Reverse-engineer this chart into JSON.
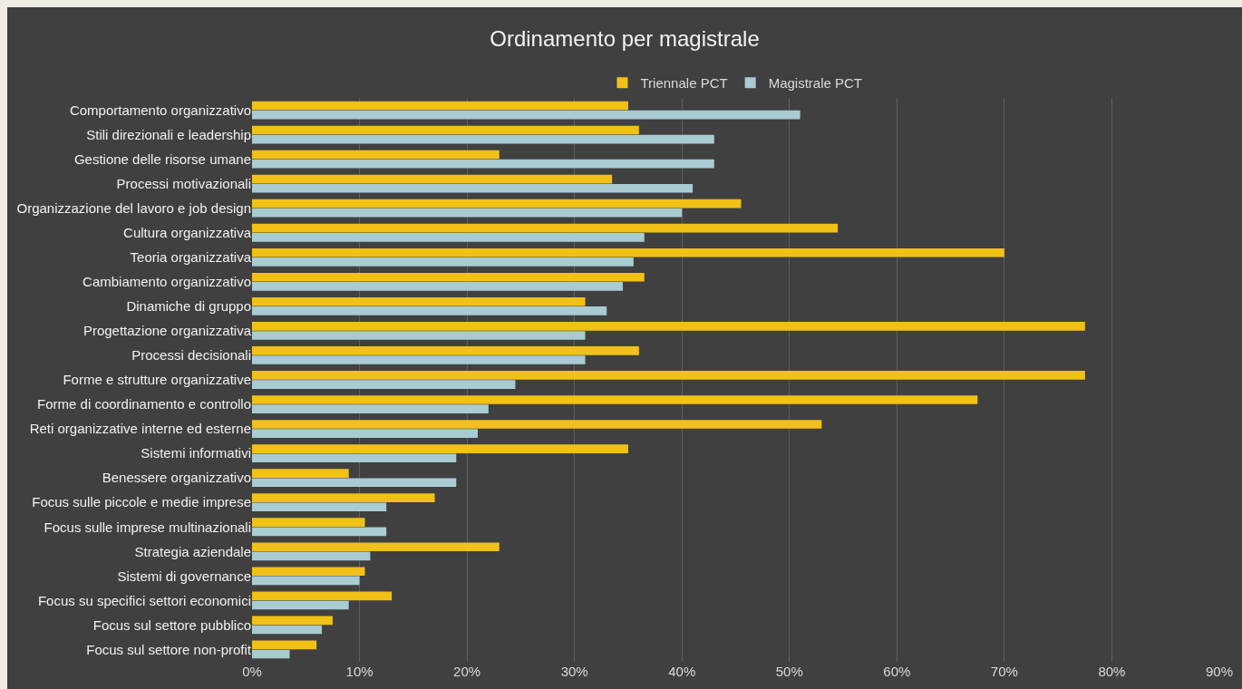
{
  "chart_data": {
    "type": "bar",
    "orientation": "horizontal",
    "title": "Ordinamento per magistrale",
    "categories": [
      "Comportamento organizzativo",
      "Stili direzionali e leadership",
      "Gestione delle risorse umane",
      "Processi motivazionali",
      "Organizzazione del lavoro e job design",
      "Cultura organizzativa",
      "Teoria organizzativa",
      "Cambiamento organizzativo",
      "Dinamiche di gruppo",
      "Progettazione organizzativa",
      "Processi decisionali",
      "Forme e strutture organizzative",
      "Forme di coordinamento e controllo",
      "Reti organizzative interne ed esterne",
      "Sistemi informativi",
      "Benessere organizzativo",
      "Focus sulle piccole e medie imprese",
      "Focus sulle imprese multinazionali",
      "Strategia aziendale",
      "Sistemi di governance",
      "Focus su specifici settori economici",
      "Focus sul settore pubblico",
      "Focus sul settore non-profit"
    ],
    "series": [
      {
        "name": "Triennale PCT",
        "color": "#f2c117",
        "values": [
          35,
          36,
          23,
          33.5,
          45.5,
          54.5,
          70,
          36.5,
          31,
          77.5,
          36,
          77.5,
          67.5,
          53,
          35,
          9,
          17,
          10.5,
          23,
          10.5,
          13,
          7.5,
          6
        ]
      },
      {
        "name": "Magistrale PCT",
        "color": "#a9cbd2",
        "values": [
          51,
          43,
          43,
          41,
          40,
          36.5,
          35.5,
          34.5,
          33,
          31,
          31,
          24.5,
          22,
          21,
          19,
          19,
          12.5,
          12.5,
          11,
          10,
          9,
          6.5,
          3.5
        ]
      }
    ],
    "xlim": [
      0,
      90
    ],
    "xticks": [
      {
        "value": 0,
        "label": "0%"
      },
      {
        "value": 10,
        "label": "10%"
      },
      {
        "value": 20,
        "label": "20%"
      },
      {
        "value": 30,
        "label": "30%"
      },
      {
        "value": 40,
        "label": "40%"
      },
      {
        "value": 50,
        "label": "50%"
      },
      {
        "value": 60,
        "label": "60%"
      },
      {
        "value": 70,
        "label": "70%"
      },
      {
        "value": 80,
        "label": "80%"
      },
      {
        "value": 90,
        "label": "90%"
      }
    ],
    "grid": "x",
    "legend": "top"
  }
}
